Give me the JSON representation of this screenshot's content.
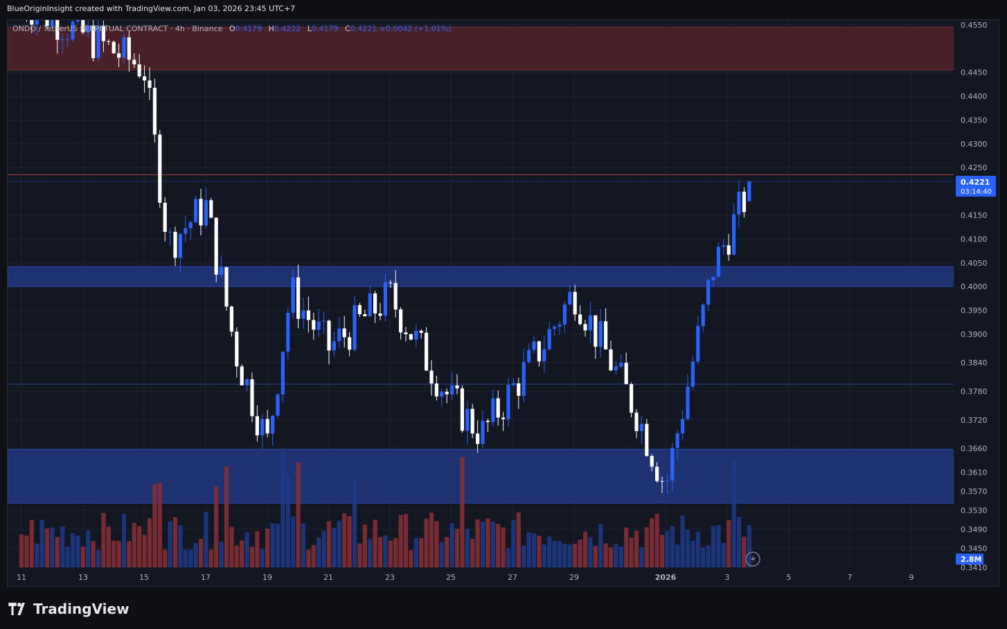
{
  "header": {
    "credit": "BlueOriginInsight created with TradingView.com, Jan 03, 2026 23:45 UTC+7"
  },
  "legend": {
    "symbol": "ONDO / TetherUS PERPETUAL CONTRACT · 4h · Binance",
    "o_label": "O",
    "o_value": "0.4179",
    "h_label": "H",
    "h_value": "0.4222",
    "l_label": "L",
    "l_value": "0.4179",
    "c_label": "C",
    "c_value": "0.4221",
    "change": "+0.0042 (+1.01%)"
  },
  "price_axis": {
    "ticks": [
      "0.4550",
      "0.4450",
      "0.4400",
      "0.4350",
      "0.4300",
      "0.4250",
      "0.4150",
      "0.4100",
      "0.4050",
      "0.4000",
      "0.3950",
      "0.3900",
      "0.3840",
      "0.3780",
      "0.3720",
      "0.3660",
      "0.3610",
      "0.3570",
      "0.3530",
      "0.3490",
      "0.3450",
      "0.3410"
    ],
    "current_price": "0.4221",
    "countdown": "03:14:40",
    "volume_label": "2.8M"
  },
  "time_axis": {
    "labels": [
      "11",
      "13",
      "15",
      "17",
      "19",
      "21",
      "23",
      "25",
      "27",
      "29",
      "2026",
      "3",
      "5",
      "7",
      "9"
    ]
  },
  "footer": {
    "brand": "TradingView"
  },
  "colors": {
    "up": "#2962ff",
    "down": "#ffffff",
    "vol_up": "#1e3a8a",
    "vol_down": "#8b2f35",
    "supply_zone": "#4a2028",
    "demand_zone": "#1e3170",
    "background": "#131722"
  },
  "chart_data": {
    "type": "candlestick",
    "timeframe": "4h",
    "symbol": "ONDO / TetherUS PERPETUAL CONTRACT",
    "price_range": [
      0.341,
      0.456
    ],
    "zones": [
      {
        "kind": "supply",
        "low": 0.4455,
        "high": 0.4545
      },
      {
        "kind": "demand",
        "low": 0.4,
        "high": 0.4042
      },
      {
        "kind": "demand",
        "low": 0.3545,
        "high": 0.3658
      }
    ],
    "lines": [
      0.4235,
      0.3795
    ],
    "last_close": 0.4221,
    "anchors": [
      {
        "date": "Dec 11",
        "close": 0.46
      },
      {
        "date": "Dec 15",
        "close": 0.446
      },
      {
        "date": "Dec 16",
        "close": 0.409
      },
      {
        "date": "Dec 17",
        "close": 0.417
      },
      {
        "date": "Dec 18",
        "close": 0.386
      },
      {
        "date": "Dec 19",
        "close": 0.367
      },
      {
        "date": "Dec 20",
        "close": 0.399
      },
      {
        "date": "Dec 22",
        "close": 0.387
      },
      {
        "date": "Dec 23",
        "close": 0.398
      },
      {
        "date": "Dec 25",
        "close": 0.376
      },
      {
        "date": "Dec 26",
        "close": 0.369
      },
      {
        "date": "Dec 28",
        "close": 0.388
      },
      {
        "date": "Dec 29",
        "close": 0.399
      },
      {
        "date": "Dec 31",
        "close": 0.374
      },
      {
        "date": "Jan 01",
        "close": 0.358
      },
      {
        "date": "Jan 02",
        "close": 0.404
      },
      {
        "date": "Jan 03",
        "close": 0.4221
      }
    ]
  }
}
